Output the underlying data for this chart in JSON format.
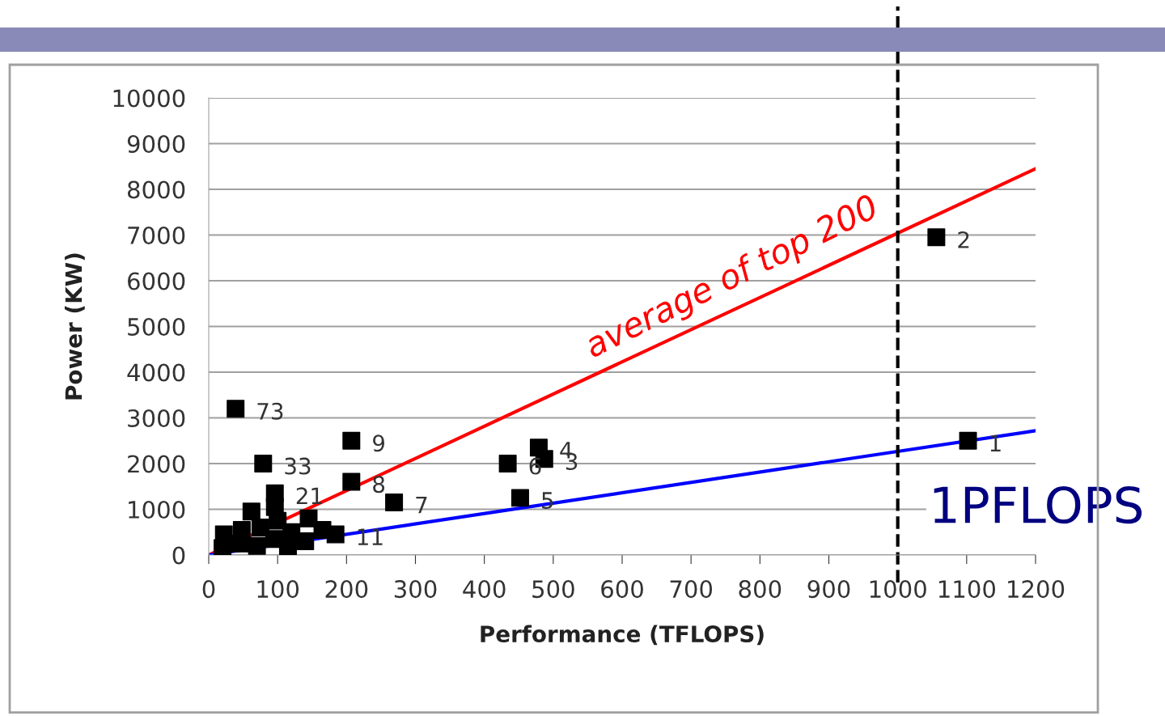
{
  "chart_data": {
    "type": "scatter",
    "xlabel": "Performance (TFLOPS)",
    "ylabel": "Power (KW)",
    "xlim": [
      0,
      1200
    ],
    "ylim": [
      0,
      10000
    ],
    "xticks": [
      0,
      100,
      200,
      300,
      400,
      500,
      600,
      700,
      800,
      900,
      1000,
      1100,
      1200
    ],
    "yticks": [
      0,
      1000,
      2000,
      3000,
      4000,
      5000,
      6000,
      7000,
      8000,
      9000,
      10000
    ],
    "grid": "y",
    "legend": false,
    "marker": "square",
    "ref_lines": [
      {
        "axis": "x",
        "value": 1000,
        "label": "1PFLOPS",
        "color": "#000000",
        "line_style": "dashed"
      }
    ],
    "annotations": [
      {
        "text": "1",
        "x": 1102,
        "y": 2500
      },
      {
        "text": "2",
        "x": 1056,
        "y": 6950
      },
      {
        "text": "3",
        "x": 487,
        "y": 2100
      },
      {
        "text": "4",
        "x": 479,
        "y": 2350
      },
      {
        "text": "5",
        "x": 452,
        "y": 1250
      },
      {
        "text": "6",
        "x": 434,
        "y": 2000
      },
      {
        "text": "7",
        "x": 269,
        "y": 1150
      },
      {
        "text": "8",
        "x": 207,
        "y": 1600
      },
      {
        "text": "9",
        "x": 207,
        "y": 2500
      },
      {
        "text": "33",
        "x": 79,
        "y": 2000
      },
      {
        "text": "73",
        "x": 39,
        "y": 3200
      },
      {
        "text": "21",
        "x": 96,
        "y": 1350
      },
      {
        "text": "11",
        "x": 184,
        "y": 450
      }
    ],
    "series": [
      {
        "type": "scatter",
        "color": "#000000",
        "x": [
          1102,
          1056,
          487,
          479,
          452,
          434,
          269,
          207,
          207,
          79,
          39,
          96,
          184,
          20,
          22,
          45,
          48,
          62,
          70,
          75,
          95,
          100,
          96,
          115,
          120,
          140,
          145,
          165
        ],
        "values": [
          2500,
          6950,
          2100,
          2350,
          1250,
          2000,
          1150,
          1600,
          2500,
          2000,
          3200,
          1350,
          450,
          150,
          450,
          250,
          550,
          950,
          200,
          600,
          350,
          750,
          1050,
          150,
          500,
          300,
          800,
          550
        ]
      },
      {
        "type": "line",
        "name": "average of top 200",
        "color": "#ff0000",
        "x": [
          0,
          1200
        ],
        "values": [
          0,
          8450
        ],
        "marker": "none"
      },
      {
        "type": "line",
        "color": "#0000ff",
        "x": [
          0,
          1200
        ],
        "values": [
          0,
          2720
        ],
        "marker": "none"
      }
    ]
  }
}
